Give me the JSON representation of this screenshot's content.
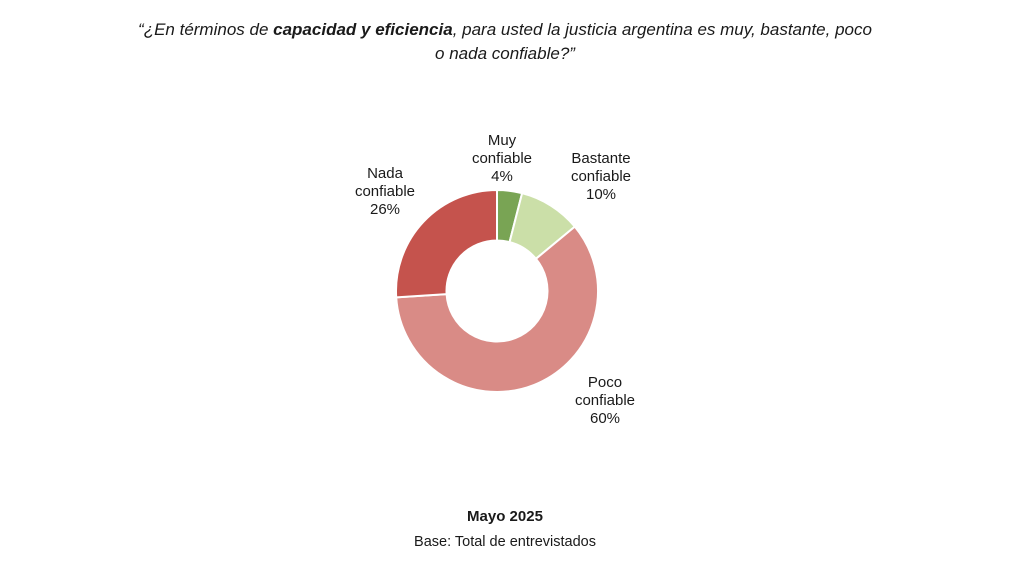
{
  "title": {
    "prefix": "“¿En términos de ",
    "emphasis": "capacidad y eficiencia",
    "suffix_line1": ", para usted la justicia argentina es muy, bastante, poco",
    "suffix_line2": "o nada confiable?”"
  },
  "footer": {
    "date": "Mayo 2025",
    "base": "Base: Total de entrevistados"
  },
  "chart_data": {
    "type": "pie",
    "subtype": "donut",
    "title": "“¿En términos de capacidad y eficiencia, para usted la justicia argentina es muy, bastante, poco o nada confiable?”",
    "categories": [
      "Muy confiable",
      "Bastante confiable",
      "Poco confiable",
      "Nada confiable"
    ],
    "values": [
      4,
      10,
      60,
      26
    ],
    "unit": "%",
    "colors": [
      "#79a454",
      "#cbdfa8",
      "#d98b86",
      "#c5534d"
    ],
    "start_angle_deg": 0,
    "direction": "clockwise",
    "inner_radius_ratio": 0.5,
    "divider_color": "#ffffff",
    "slice_labels": [
      "Muy\nconfiable\n4%",
      "Bastante\nconfiable\n10%",
      "Poco\nconfiable\n60%",
      "Nada\nconfiable\n26%"
    ]
  }
}
